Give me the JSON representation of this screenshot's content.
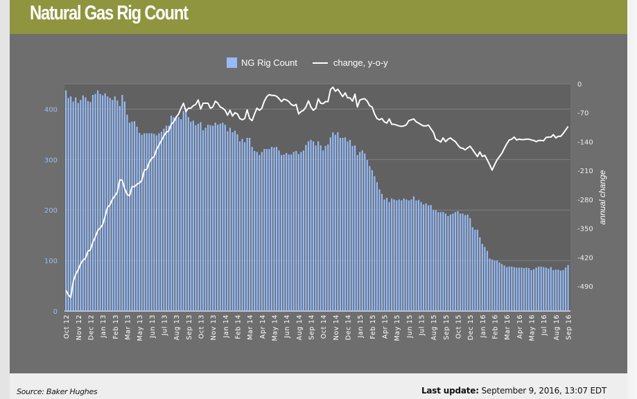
{
  "header": {
    "title": "Natural Gas Rig Count"
  },
  "footer": {
    "source": "Source: Baker Hughes",
    "update_label": "Last update:",
    "update_value": "September 9, 2016, 13:07 EDT"
  },
  "colors": {
    "title_bar": "#8f943f",
    "bars": "#97bbf5",
    "line": "#ffffff",
    "plot_bg": "#616161",
    "panel_bg": "#6e6e6e"
  },
  "chart_data": {
    "type": "bar+line",
    "legend": {
      "position": "top",
      "entries": [
        "NG Rig Count",
        "change, y-o-y"
      ]
    },
    "left_axis": {
      "ticks": [
        "0",
        "100",
        "200",
        "300",
        "400"
      ],
      "range": [
        0,
        450
      ]
    },
    "right_axis": {
      "label": "annual change",
      "ticks": [
        "0",
        "-70",
        "-140",
        "-210",
        "-280",
        "-350",
        "-420",
        "-490"
      ],
      "range": [
        -550,
        0
      ]
    },
    "x_ticks": [
      "Oct 12",
      "Nov 12",
      "Dec 12",
      "Jan 13",
      "Feb 13",
      "Mar 13",
      "May 13",
      "Jun 13",
      "Jul 13",
      "Aug 13",
      "Sep 13",
      "Oct 13",
      "Nov 13",
      "Jan 14",
      "Feb 14",
      "Mar 14",
      "Apr 14",
      "May 14",
      "Jun 14",
      "Aug 14",
      "Sep 14",
      "Oct 14",
      "Nov 14",
      "Dec 14",
      "Jan 15",
      "Feb 15",
      "Apr 15",
      "May 15",
      "Jun 15",
      "Jul 15",
      "Aug 15",
      "Sep 15",
      "Oct 15",
      "Dec 15",
      "Jan 16",
      "Feb 16",
      "Mar 16",
      "Apr 16",
      "May 16",
      "Jul 16",
      "Aug 16",
      "Sep 16"
    ],
    "grid": true,
    "series": [
      {
        "name": "NG Rig Count",
        "type": "bar",
        "axis": "left",
        "values": [
          437,
          422,
          425,
          415,
          423,
          412,
          418,
          427,
          423,
          416,
          414,
          428,
          430,
          437,
          430,
          427,
          431,
          425,
          422,
          418,
          425,
          417,
          406,
          428,
          415,
          389,
          373,
          375,
          376,
          365,
          353,
          349,
          352,
          352,
          352,
          352,
          351,
          348,
          352,
          355,
          361,
          367,
          367,
          387,
          384,
          386,
          384,
          380,
          396,
          401,
          384,
          375,
          377,
          368,
          371,
          374,
          358,
          363,
          369,
          368,
          367,
          373,
          369,
          371,
          373,
          369,
          356,
          363,
          354,
          357,
          350,
          336,
          341,
          334,
          343,
          343,
          325,
          317,
          315,
          309,
          315,
          321,
          321,
          321,
          325,
          324,
          325,
          318,
          309,
          310,
          313,
          310,
          310,
          315,
          317,
          311,
          315,
          318,
          329,
          336,
          339,
          336,
          328,
          336,
          328,
          318,
          327,
          330,
          344,
          354,
          349,
          354,
          343,
          343,
          344,
          336,
          339,
          327,
          328,
          309,
          315,
          318,
          312,
          299,
          287,
          279,
          267,
          255,
          241,
          232,
          221,
          224,
          216,
          223,
          221,
          219,
          221,
          219,
          223,
          221,
          219,
          221,
          227,
          219,
          220,
          216,
          211,
          213,
          209,
          210,
          200,
          200,
          196,
          196,
          196,
          193,
          188,
          191,
          193,
          196,
          198,
          193,
          193,
          190,
          191,
          184,
          166,
          161,
          161,
          146,
          133,
          127,
          119,
          104,
          102,
          100,
          100,
          96,
          93,
          90,
          87,
          88,
          88,
          87,
          86,
          86,
          86,
          85,
          86,
          85,
          81,
          83,
          86,
          88,
          88,
          87,
          86,
          84,
          87,
          81,
          82,
          82,
          80,
          81,
          86,
          91
        ]
      },
      {
        "name": "change, y-o-y",
        "type": "line",
        "axis": "right",
        "values": [
          -500,
          -511,
          -517,
          -478,
          -461,
          -450,
          -436,
          -427,
          -422,
          -405,
          -402,
          -383,
          -371,
          -355,
          -349,
          -341,
          -321,
          -299,
          -293,
          -279,
          -271,
          -262,
          -232,
          -234,
          -254,
          -268,
          -271,
          -249,
          -249,
          -243,
          -240,
          -234,
          -209,
          -207,
          -190,
          -181,
          -176,
          -159,
          -148,
          -137,
          -126,
          -117,
          -114,
          -98,
          -92,
          -81,
          -73,
          -59,
          -47,
          -67,
          -59,
          -59,
          -53,
          -50,
          -39,
          -61,
          -47,
          -47,
          -47,
          -59,
          -56,
          -42,
          -47,
          -56,
          -59,
          -64,
          -76,
          -64,
          -78,
          -70,
          -73,
          -84,
          -87,
          -84,
          -63,
          -84,
          -89,
          -73,
          -59,
          -64,
          -59,
          -42,
          -31,
          -26,
          -28,
          -28,
          -30,
          -36,
          -43,
          -37,
          -39,
          -43,
          -50,
          -53,
          -50,
          -73,
          -67,
          -64,
          -56,
          -41,
          -56,
          -64,
          -59,
          -36,
          -47,
          -48,
          -43,
          -43,
          -14,
          -8,
          -18,
          -13,
          -22,
          -31,
          -22,
          -34,
          -34,
          -42,
          -25,
          -56,
          -39,
          -37,
          -36,
          -42,
          -53,
          -56,
          -73,
          -84,
          -87,
          -84,
          -92,
          -95,
          -85,
          -98,
          -98,
          -100,
          -102,
          -103,
          -102,
          -99,
          -89,
          -87,
          -85,
          -92,
          -95,
          -99,
          -102,
          -102,
          -100,
          -109,
          -117,
          -134,
          -137,
          -141,
          -131,
          -140,
          -134,
          -131,
          -136,
          -140,
          -148,
          -155,
          -156,
          -160,
          -155,
          -151,
          -159,
          -168,
          -176,
          -165,
          -176,
          -173,
          -184,
          -196,
          -209,
          -196,
          -184,
          -176,
          -168,
          -156,
          -145,
          -136,
          -134,
          -129,
          -136,
          -134,
          -135,
          -135,
          -134,
          -134,
          -136,
          -137,
          -140,
          -137,
          -137,
          -138,
          -130,
          -129,
          -129,
          -123,
          -131,
          -127,
          -127,
          -120,
          -112,
          -103
        ]
      }
    ]
  }
}
